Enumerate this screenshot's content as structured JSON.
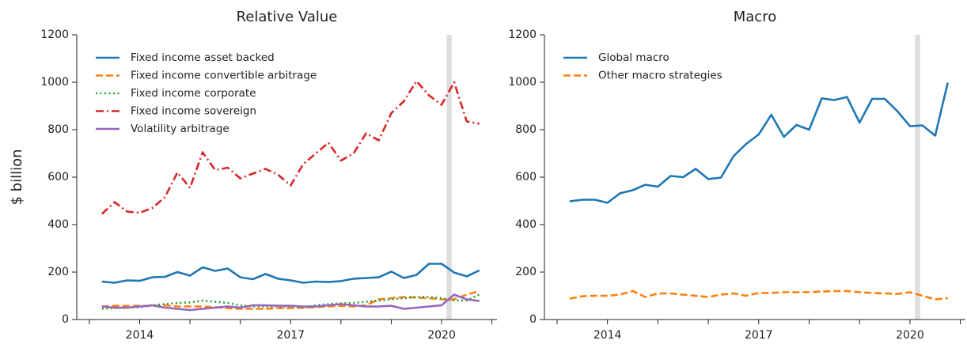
{
  "chart_data": [
    {
      "type": "line",
      "title": "Relative Value",
      "y_label": "$ billion",
      "x": [
        2013.25,
        2013.5,
        2013.75,
        2014,
        2014.25,
        2014.5,
        2014.75,
        2015,
        2015.25,
        2015.5,
        2015.75,
        2016,
        2016.25,
        2016.5,
        2016.75,
        2017,
        2017.25,
        2017.5,
        2017.75,
        2018,
        2018.25,
        2018.5,
        2018.75,
        2019,
        2019.25,
        2019.5,
        2019.75,
        2020,
        2020.25,
        2020.5,
        2020.75
      ],
      "series": [
        {
          "name": "Fixed income asset backed",
          "color": "#1f77b4",
          "linestyle": "solid",
          "values": [
            160,
            155,
            165,
            163,
            178,
            180,
            200,
            185,
            220,
            205,
            215,
            178,
            170,
            192,
            172,
            165,
            155,
            160,
            158,
            162,
            172,
            175,
            178,
            202,
            175,
            188,
            235,
            235,
            198,
            182,
            207
          ]
        },
        {
          "name": "Fixed income convertible arbitrage",
          "color": "#ff7f0e",
          "linestyle": "dashed",
          "values": [
            55,
            58,
            57,
            58,
            57,
            60,
            55,
            55,
            55,
            52,
            48,
            45,
            45,
            45,
            48,
            48,
            50,
            52,
            55,
            58,
            55,
            60,
            85,
            90,
            95,
            92,
            90,
            85,
            85,
            105,
            120
          ]
        },
        {
          "name": "Fixed income corporate",
          "color": "#2ca02c",
          "linestyle": "dotted",
          "values": [
            45,
            48,
            50,
            52,
            60,
            65,
            70,
            72,
            80,
            75,
            70,
            60,
            55,
            55,
            55,
            55,
            50,
            60,
            65,
            68,
            70,
            75,
            80,
            85,
            90,
            95,
            95,
            90,
            80,
            80,
            105
          ]
        },
        {
          "name": "Fixed income sovereign",
          "color": "#d62728",
          "linestyle": "dashdot",
          "values": [
            445,
            495,
            455,
            450,
            470,
            515,
            620,
            555,
            705,
            630,
            640,
            595,
            615,
            635,
            610,
            565,
            655,
            700,
            745,
            670,
            700,
            785,
            755,
            870,
            920,
            1005,
            945,
            905,
            1000,
            835,
            825
          ]
        },
        {
          "name": "Volatility arbitrage",
          "color": "#9467bd",
          "linestyle": "solid",
          "values": [
            55,
            50,
            50,
            55,
            60,
            50,
            45,
            40,
            45,
            50,
            55,
            50,
            60,
            60,
            58,
            58,
            55,
            55,
            60,
            65,
            60,
            55,
            55,
            58,
            45,
            50,
            55,
            60,
            105,
            85,
            78
          ]
        }
      ],
      "xlim": [
        2012.75,
        2021.1
      ],
      "xticks": [
        2014,
        2017,
        2020
      ],
      "xminorticks": [
        2013,
        2015,
        2016,
        2018,
        2019,
        2021
      ],
      "ylim": [
        0,
        1200
      ],
      "yticks": [
        0,
        200,
        400,
        600,
        800,
        1000,
        1200
      ],
      "shaded_span": [
        2020.1,
        2020.2
      ],
      "shade_color": "#dddddd",
      "legend": "upper left"
    },
    {
      "type": "line",
      "title": "Macro",
      "x": [
        2013.25,
        2013.5,
        2013.75,
        2014,
        2014.25,
        2014.5,
        2014.75,
        2015,
        2015.25,
        2015.5,
        2015.75,
        2016,
        2016.25,
        2016.5,
        2016.75,
        2017,
        2017.25,
        2017.5,
        2017.75,
        2018,
        2018.25,
        2018.5,
        2018.75,
        2019,
        2019.25,
        2019.5,
        2019.75,
        2020,
        2020.25,
        2020.5,
        2020.75
      ],
      "series": [
        {
          "name": "Global macro",
          "color": "#1f77b4",
          "linestyle": "solid",
          "values": [
            498,
            505,
            505,
            492,
            532,
            545,
            568,
            560,
            605,
            600,
            635,
            592,
            598,
            688,
            740,
            780,
            863,
            770,
            820,
            800,
            932,
            925,
            938,
            830,
            930,
            930,
            878,
            815,
            818,
            775,
            998
          ]
        },
        {
          "name": "Other macro strategies",
          "color": "#ff7f0e",
          "linestyle": "dashed",
          "values": [
            88,
            98,
            100,
            100,
            105,
            120,
            95,
            110,
            110,
            105,
            100,
            95,
            105,
            110,
            100,
            112,
            112,
            115,
            115,
            115,
            118,
            120,
            120,
            115,
            112,
            110,
            108,
            115,
            100,
            85,
            90
          ]
        }
      ],
      "xlim": [
        2012.75,
        2021.1
      ],
      "xticks": [
        2014,
        2017,
        2020
      ],
      "xminorticks": [
        2013,
        2015,
        2016,
        2018,
        2019,
        2021
      ],
      "ylim": [
        0,
        1200
      ],
      "yticks": [
        0,
        200,
        400,
        600,
        800,
        1000,
        1200
      ],
      "shaded_span": [
        2020.1,
        2020.2
      ],
      "shade_color": "#dddddd",
      "legend": "upper left"
    }
  ]
}
